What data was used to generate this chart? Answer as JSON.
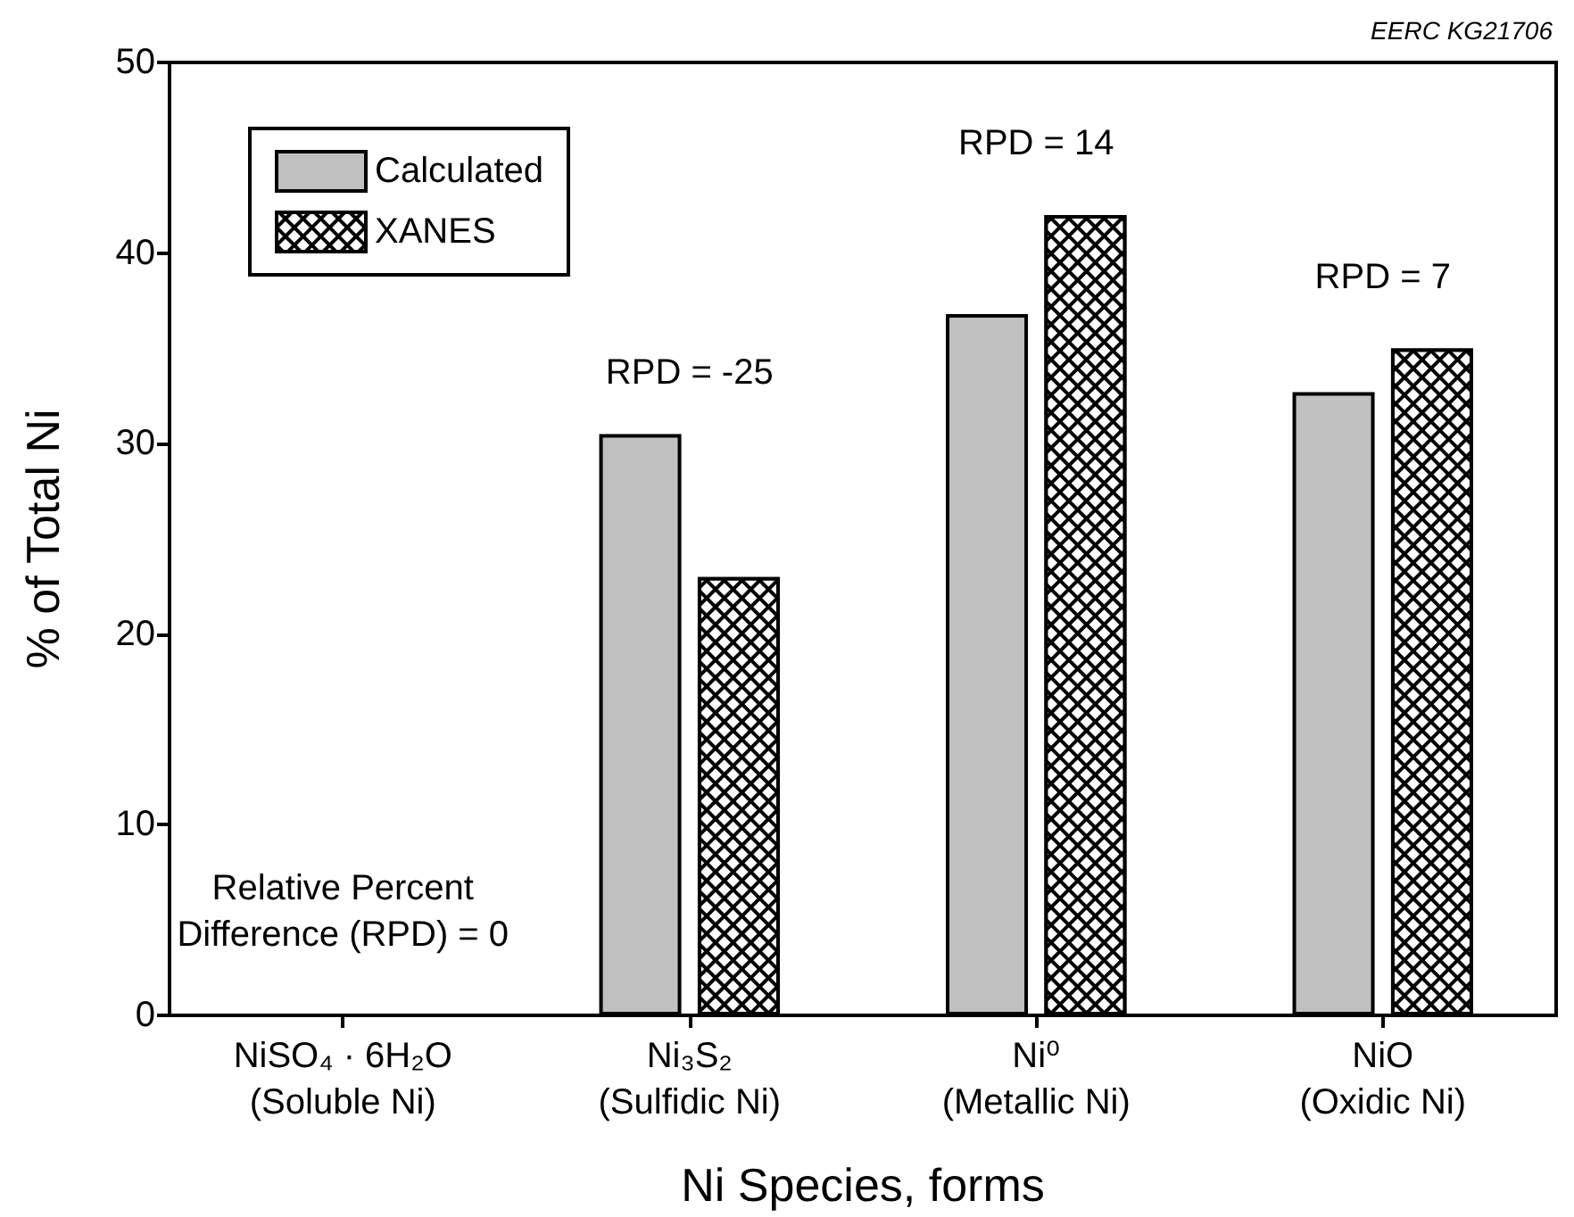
{
  "chart_data": {
    "type": "bar",
    "ylabel": "% of Total Ni",
    "xlabel": "Ni Species, forms",
    "categories": [
      "NiSO₄ · 6H₂O\n(Soluble Ni)",
      "Ni₃S₂\n(Sulfidic Ni)",
      "Ni⁰\n(Metallic Ni)",
      "NiO\n(Oxidic Ni)"
    ],
    "series": [
      {
        "name": "Calculated",
        "color": "#c0c0c0",
        "values": [
          null,
          30.5,
          36.8,
          32.7
        ]
      },
      {
        "name": "XANES",
        "color": "#000000",
        "values": [
          null,
          23.0,
          42.0,
          35.0
        ]
      }
    ],
    "ylim": [
      0,
      50
    ],
    "yticks": [
      0,
      10,
      20,
      30,
      40,
      50
    ],
    "grid": false,
    "legend": "top left",
    "annotations": [
      "EERC KG21706",
      "RPD = -25",
      "RPD = 14",
      "RPD = 7",
      "Relative Percent\nDifference (RPD) = 0"
    ]
  }
}
